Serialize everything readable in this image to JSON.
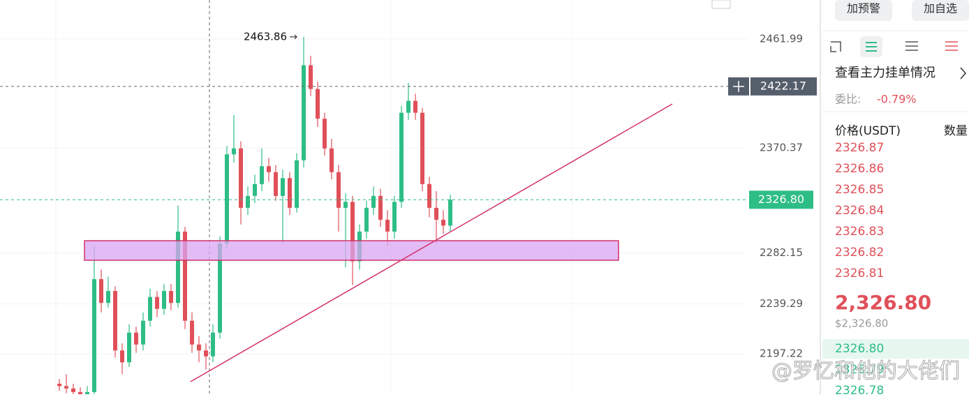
{
  "chart_data": {
    "type": "candlestick",
    "candles": [
      [
        2172,
        2176,
        2166,
        2170
      ],
      [
        2170,
        2180,
        2164,
        2168
      ],
      [
        2168,
        2172,
        2160,
        2165
      ],
      [
        2165,
        2169,
        2158,
        2163
      ],
      [
        2163,
        2170,
        2160,
        2165
      ],
      [
        2165,
        2288,
        2162,
        2260
      ],
      [
        2260,
        2268,
        2232,
        2240
      ],
      [
        2240,
        2262,
        2236,
        2250
      ],
      [
        2250,
        2254,
        2194,
        2200
      ],
      [
        2200,
        2206,
        2180,
        2190
      ],
      [
        2190,
        2222,
        2186,
        2215
      ],
      [
        2215,
        2220,
        2198,
        2205
      ],
      [
        2205,
        2232,
        2200,
        2225
      ],
      [
        2225,
        2252,
        2220,
        2245
      ],
      [
        2245,
        2250,
        2228,
        2235
      ],
      [
        2235,
        2256,
        2230,
        2250
      ],
      [
        2250,
        2256,
        2234,
        2240
      ],
      [
        2240,
        2322,
        2236,
        2300
      ],
      [
        2300,
        2304,
        2218,
        2225
      ],
      [
        2225,
        2232,
        2198,
        2205
      ],
      [
        2205,
        2212,
        2190,
        2200
      ],
      [
        2200,
        2206,
        2184,
        2195
      ],
      [
        2195,
        2222,
        2190,
        2215
      ],
      [
        2215,
        2296,
        2210,
        2290
      ],
      [
        2290,
        2372,
        2286,
        2365
      ],
      [
        2365,
        2398,
        2358,
        2370
      ],
      [
        2370,
        2376,
        2306,
        2320
      ],
      [
        2320,
        2338,
        2314,
        2330
      ],
      [
        2330,
        2348,
        2324,
        2340
      ],
      [
        2340,
        2370,
        2334,
        2355
      ],
      [
        2355,
        2362,
        2342,
        2350
      ],
      [
        2350,
        2356,
        2326,
        2330
      ],
      [
        2330,
        2352,
        2290,
        2345
      ],
      [
        2345,
        2350,
        2314,
        2320
      ],
      [
        2320,
        2366,
        2316,
        2360
      ],
      [
        2360,
        2463.86,
        2354,
        2440
      ],
      [
        2440,
        2448,
        2414,
        2420
      ],
      [
        2420,
        2426,
        2388,
        2395
      ],
      [
        2395,
        2400,
        2364,
        2370
      ],
      [
        2370,
        2378,
        2344,
        2350
      ],
      [
        2350,
        2356,
        2300,
        2320
      ],
      [
        2320,
        2332,
        2270,
        2325
      ],
      [
        2325,
        2330,
        2255,
        2275
      ],
      [
        2275,
        2306,
        2268,
        2300
      ],
      [
        2300,
        2326,
        2294,
        2320
      ],
      [
        2320,
        2338,
        2314,
        2330
      ],
      [
        2330,
        2336,
        2304,
        2310
      ],
      [
        2310,
        2318,
        2288,
        2300
      ],
      [
        2300,
        2330,
        2294,
        2325
      ],
      [
        2325,
        2406,
        2320,
        2400
      ],
      [
        2400,
        2425,
        2394,
        2410
      ],
      [
        2410,
        2416,
        2394,
        2400
      ],
      [
        2400,
        2404,
        2334,
        2340
      ],
      [
        2340,
        2346,
        2312,
        2320
      ],
      [
        2320,
        2334,
        2290,
        2310
      ],
      [
        2310,
        2318,
        2298,
        2305
      ],
      [
        2305,
        2331,
        2300,
        2326.8
      ]
    ],
    "ylim": [
      2163.17,
      2494.87
    ],
    "yticks": [
      2461.99,
      2370.37,
      2282.15,
      2239.29,
      2197.22
    ],
    "last_price": {
      "value": 2326.8,
      "label": "2326.80"
    },
    "crosshair_price": 2422.17,
    "up_color": "#2ebd85",
    "down_color": "#e0505a"
  },
  "panel": {
    "buttons": [
      "加预警",
      "加自选"
    ],
    "orders_link": "查看主力挂单情况",
    "ratio_label": "委比:",
    "ratio": "-0.79%",
    "headers": [
      "价格(USDT)",
      "数量"
    ],
    "asks": [
      "2326.87",
      "2326.86",
      "2326.85",
      "2326.84",
      "2326.83",
      "2326.82",
      "2326.81"
    ],
    "last": "2,326.80",
    "last_usd": "$2,326.80",
    "bids": [
      "2326.80",
      "2326.79",
      "2326.78"
    ]
  },
  "watermark": "@罗忆和他的大佬们"
}
